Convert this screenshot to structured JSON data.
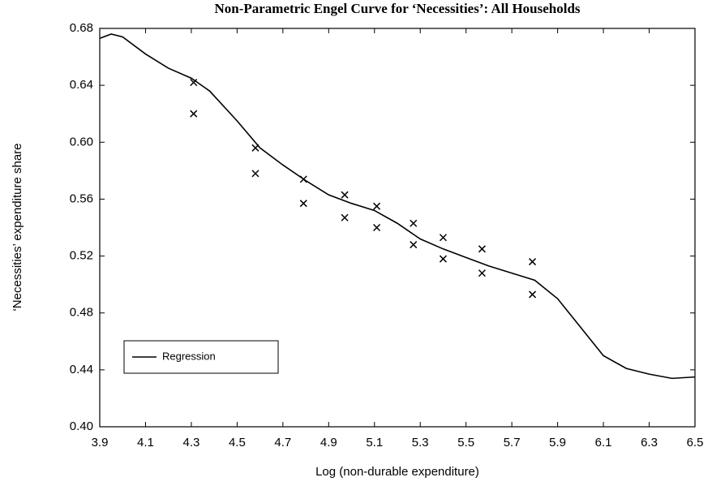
{
  "chart_data": {
    "type": "line",
    "title": "Non-Parametric Engel Curve for ‘Necessities’: All Households",
    "x_label": "Log (non-durable expenditure)",
    "y_label": "‘Necessities’ expenditure share",
    "xlim": [
      3.9,
      6.5
    ],
    "ylim": [
      0.4,
      0.68
    ],
    "xticks": [
      3.9,
      4.1,
      4.3,
      4.5,
      4.7,
      4.9,
      5.1,
      5.3,
      5.5,
      5.7,
      5.9,
      6.1,
      6.3,
      6.5
    ],
    "yticks": [
      {
        "value": 0.4,
        "label": "0.40"
      },
      0.44,
      0.48,
      0.52,
      0.56,
      {
        "value": 0.6,
        "label": "0.60"
      },
      0.64,
      0.68
    ],
    "legend_position": "lower left",
    "series": [
      {
        "name": "Regression",
        "color": "#000000",
        "x": [
          3.9,
          3.95,
          4.0,
          4.1,
          4.2,
          4.3,
          4.38,
          4.5,
          4.6,
          4.7,
          4.8,
          4.9,
          5.0,
          5.1,
          5.2,
          5.3,
          5.4,
          5.5,
          5.6,
          5.7,
          5.8,
          5.9,
          6.0,
          6.1,
          6.2,
          6.3,
          6.4,
          6.5
        ],
        "values": [
          0.673,
          0.676,
          0.674,
          0.662,
          0.652,
          0.645,
          0.636,
          0.615,
          0.596,
          0.584,
          0.573,
          0.563,
          0.557,
          0.552,
          0.543,
          0.532,
          0.525,
          0.519,
          0.513,
          0.508,
          0.503,
          0.49,
          0.47,
          0.45,
          0.441,
          0.437,
          0.434,
          0.435
        ]
      }
    ],
    "markers": {
      "color": "#000000",
      "x": [
        4.31,
        4.31,
        4.58,
        4.58,
        4.79,
        4.79,
        4.97,
        4.97,
        5.11,
        5.11,
        5.27,
        5.27,
        5.4,
        5.4,
        5.57,
        5.57,
        5.79,
        5.79
      ],
      "values": [
        0.642,
        0.62,
        0.596,
        0.578,
        0.574,
        0.557,
        0.563,
        0.547,
        0.555,
        0.54,
        0.543,
        0.528,
        0.533,
        0.518,
        0.525,
        0.508,
        0.516,
        0.493
      ]
    }
  }
}
